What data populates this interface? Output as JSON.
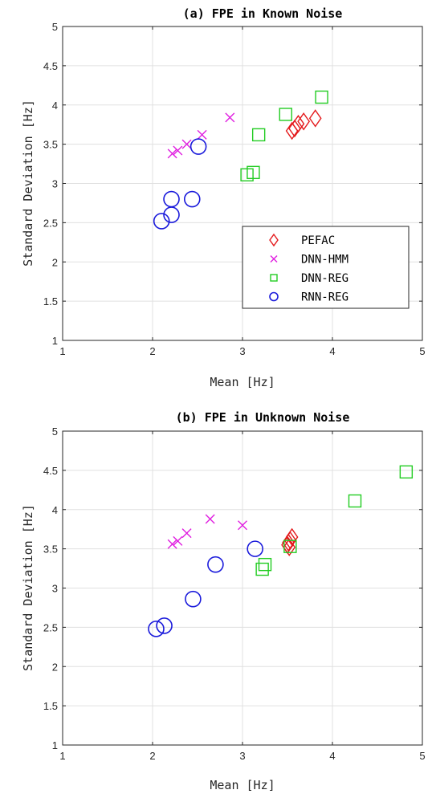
{
  "colors": {
    "PEFAC": "#e41a1c",
    "DNN-HMM": "#e01fe0",
    "DNN-REG": "#22cc22",
    "RNN-REG": "#1a1adb",
    "grid": "#e0e0e0",
    "axis": "#262626"
  },
  "chart_data": [
    {
      "type": "scatter",
      "title": "(a) FPE in Known Noise",
      "xlabel": "Mean [Hz]",
      "ylabel": "Standard Deviation [Hz]",
      "xlim": [
        1,
        5
      ],
      "ylim": [
        1,
        5
      ],
      "xticks": [
        "1",
        "2",
        "3",
        "4",
        "5"
      ],
      "yticks": [
        "1",
        "1.5",
        "2",
        "2.5",
        "3",
        "3.5",
        "4",
        "4.5",
        "5"
      ],
      "grid": true,
      "legend_position": "bottom-right",
      "series": [
        {
          "name": "PEFAC",
          "marker": "diamond",
          "points": [
            [
              3.55,
              3.67
            ],
            [
              3.58,
              3.7
            ],
            [
              3.62,
              3.76
            ],
            [
              3.68,
              3.79
            ],
            [
              3.81,
              3.83
            ]
          ]
        },
        {
          "name": "DNN-HMM",
          "marker": "x",
          "points": [
            [
              2.22,
              3.38
            ],
            [
              2.28,
              3.42
            ],
            [
              2.38,
              3.5
            ],
            [
              2.55,
              3.62
            ],
            [
              2.86,
              3.84
            ]
          ]
        },
        {
          "name": "DNN-REG",
          "marker": "square",
          "points": [
            [
              3.05,
              3.11
            ],
            [
              3.12,
              3.14
            ],
            [
              3.18,
              3.62
            ],
            [
              3.48,
              3.88
            ],
            [
              3.88,
              4.1
            ]
          ]
        },
        {
          "name": "RNN-REG",
          "marker": "circle",
          "points": [
            [
              2.1,
              2.52
            ],
            [
              2.21,
              2.6
            ],
            [
              2.21,
              2.8
            ],
            [
              2.44,
              2.8
            ],
            [
              2.51,
              3.47
            ]
          ]
        }
      ]
    },
    {
      "type": "scatter",
      "title": "(b) FPE in Unknown Noise",
      "xlabel": "Mean [Hz]",
      "ylabel": "Standard Deviation [Hz]",
      "xlim": [
        1,
        5
      ],
      "ylim": [
        1,
        5
      ],
      "xticks": [
        "1",
        "2",
        "3",
        "4",
        "5"
      ],
      "yticks": [
        "1",
        "1.5",
        "2",
        "2.5",
        "3",
        "3.5",
        "4",
        "4.5",
        "5"
      ],
      "grid": true,
      "series": [
        {
          "name": "PEFAC",
          "marker": "diamond",
          "points": [
            [
              3.5,
              3.55
            ],
            [
              3.51,
              3.58
            ],
            [
              3.53,
              3.61
            ],
            [
              3.55,
              3.65
            ],
            [
              3.52,
              3.52
            ]
          ]
        },
        {
          "name": "DNN-HMM",
          "marker": "x",
          "points": [
            [
              2.22,
              3.56
            ],
            [
              2.28,
              3.6
            ],
            [
              2.38,
              3.7
            ],
            [
              2.64,
              3.88
            ],
            [
              3.0,
              3.8
            ]
          ]
        },
        {
          "name": "DNN-REG",
          "marker": "square",
          "points": [
            [
              3.22,
              3.24
            ],
            [
              3.25,
              3.3
            ],
            [
              3.53,
              3.53
            ],
            [
              4.25,
              4.11
            ],
            [
              4.82,
              4.48
            ]
          ]
        },
        {
          "name": "RNN-REG",
          "marker": "circle",
          "points": [
            [
              2.04,
              2.48
            ],
            [
              2.13,
              2.52
            ],
            [
              2.45,
              2.86
            ],
            [
              2.7,
              3.3
            ],
            [
              3.14,
              3.5
            ]
          ]
        }
      ]
    }
  ]
}
